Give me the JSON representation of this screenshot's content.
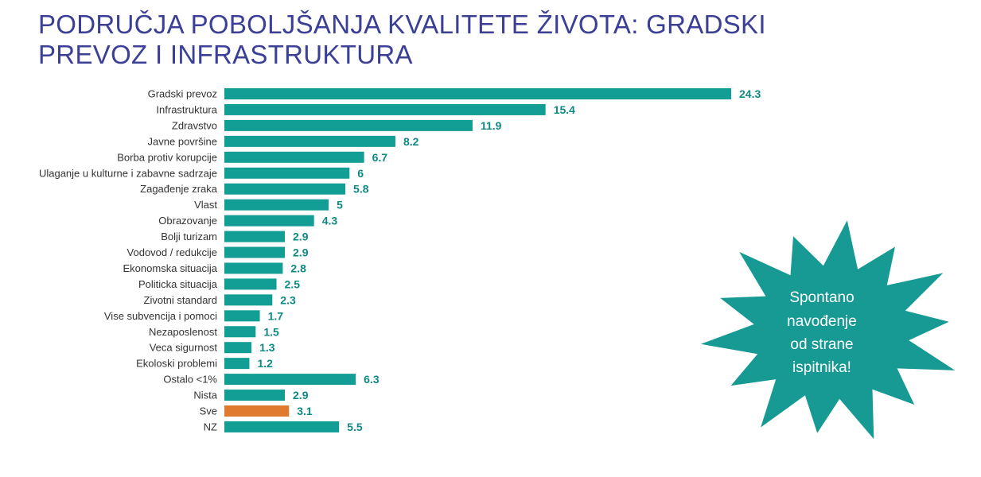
{
  "title_lines": [
    "PODRUČJA POBOLJŠANJA KVALITETE ŽIVOTA: GRADSKI",
    "PREVOZ I INFRASTRUKTURA"
  ],
  "callout_lines": [
    "Spontano",
    "navođenje",
    "od strane",
    "ispitnika!"
  ],
  "colors": {
    "bar": "#139e95",
    "highlight": "#e07a2f",
    "title": "#3b3f95",
    "value_text": "#0e8a82",
    "burst": "#169a93"
  },
  "chart_data": {
    "type": "bar",
    "orientation": "horizontal",
    "categories": [
      "Gradski prevoz",
      "Infrastruktura",
      "Zdravstvo",
      "Javne površine",
      "Borba protiv korupcije",
      "Ulaganje u kulturne i zabavne sadrzaje",
      "Zagađenje zraka",
      "Vlast",
      "Obrazovanje",
      "Bolji turizam",
      "Vodovod / redukcije",
      "Ekonomska situacija",
      "Politicka situacija",
      "Zivotni standard",
      "Vise subvencija i pomoci",
      "Nezaposlenost",
      "Veca sigurnost",
      "Ekoloski problemi",
      "Ostalo <1%",
      "Nista",
      "Sve",
      "NZ"
    ],
    "values": [
      24.3,
      15.4,
      11.9,
      8.2,
      6.7,
      6,
      5.8,
      5,
      4.3,
      2.9,
      2.9,
      2.8,
      2.5,
      2.3,
      1.7,
      1.5,
      1.3,
      1.2,
      6.3,
      2.9,
      3.1,
      5.5
    ],
    "value_labels": [
      "24.3",
      "15.4",
      "11.9",
      "8.2",
      "6.7",
      "6",
      "5.8",
      "5",
      "4.3",
      "2.9",
      "2.9",
      "2.8",
      "2.5",
      "2.3",
      "1.7",
      "1.5",
      "1.3",
      "1.2",
      "6.3",
      "2.9",
      "3.1",
      "5.5"
    ],
    "highlighted_category": "Sve",
    "xlim": [
      0,
      24.3
    ],
    "grid": false,
    "legend": "none"
  }
}
